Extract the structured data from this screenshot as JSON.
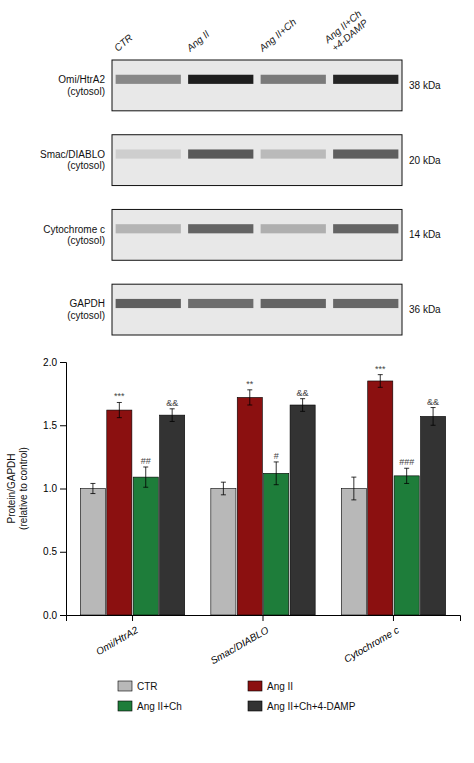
{
  "chart_data": [
    {
      "type": "heatmap",
      "x": [
        "CTR",
        "Ang II",
        "Ang II+Ch",
        "Ang II+Ch\n+4-DAMP"
      ],
      "y": [
        "Omi/HtrA2\n(cytosol)",
        "Smac/DIABLO\n(cytosol)",
        "Cytochrome c\n(cytosol)",
        "GAPDH\n(cytosol)"
      ],
      "values": [
        [
          0.55,
          0.9,
          0.6,
          0.88
        ],
        [
          0.3,
          0.72,
          0.38,
          0.7
        ],
        [
          0.4,
          0.68,
          0.42,
          0.68
        ],
        [
          0.7,
          0.65,
          0.68,
          0.67
        ]
      ],
      "annotations": [
        "38 kDa",
        "20 kDa",
        "14 kDa",
        "36 kDa"
      ],
      "color": "#e8e8e8"
    },
    {
      "type": "bar",
      "categories": [
        "Omi/HtrA2",
        "Smac/DIABLO",
        "Cytochrome c"
      ],
      "series": [
        {
          "name": "CTR",
          "color": "#b8b8b8",
          "values": [
            1.0,
            1.0,
            1.0
          ],
          "errors": [
            0.04,
            0.05,
            0.09
          ]
        },
        {
          "name": "Ang II",
          "color": "#8b1010",
          "values": [
            1.62,
            1.72,
            1.85
          ],
          "errors": [
            0.06,
            0.06,
            0.05
          ],
          "annotations": [
            "***",
            "**",
            "***"
          ]
        },
        {
          "name": "Ang II+Ch",
          "color": "#1e7d3a",
          "values": [
            1.09,
            1.12,
            1.1
          ],
          "errors": [
            0.08,
            0.09,
            0.06
          ],
          "annotations": [
            "##",
            "#",
            "###"
          ]
        },
        {
          "name": "Ang II+Ch+4-DAMP",
          "color": "#333333",
          "values": [
            1.58,
            1.66,
            1.57
          ],
          "errors": [
            0.05,
            0.05,
            0.07
          ],
          "annotations": [
            "&&",
            "&&",
            "&&"
          ]
        }
      ],
      "ylabel": "Protein/GAPDH\n(relative to control)",
      "ylim": [
        0.0,
        2.0
      ],
      "yticks": [
        {
          "value": 0,
          "label": "0.0"
        },
        0.5,
        {
          "value": 1,
          "label": "1.0"
        },
        1.5,
        {
          "value": 2,
          "label": "2.0"
        }
      ],
      "grid": false,
      "legend": "bottom"
    }
  ]
}
